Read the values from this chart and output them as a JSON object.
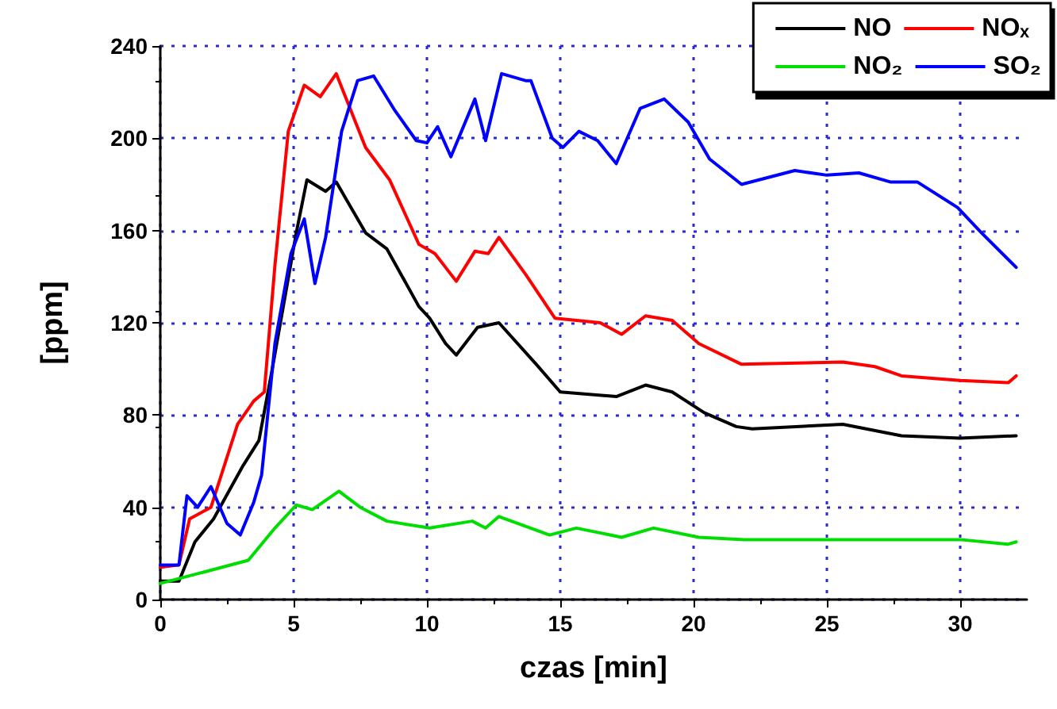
{
  "chart_data": {
    "type": "line",
    "xlabel": "czas [min]",
    "ylabel": "[ppm]",
    "xlim": [
      0,
      32.5
    ],
    "xticks": [
      0,
      5,
      10,
      15,
      20,
      25,
      30
    ],
    "ylim": [
      0,
      240
    ],
    "yticks": [
      0,
      40,
      80,
      120,
      160,
      200,
      240
    ],
    "grid": true,
    "legend": "top right",
    "series": [
      {
        "name": "NO",
        "color": "#000000",
        "x": [
          0,
          0.7,
          1.3,
          2,
          3.1,
          3.7,
          4.2,
          5.1,
          5.5,
          6.2,
          6.6,
          7.7,
          8.5,
          9.7,
          10.1,
          10.7,
          11.1,
          11.9,
          12.7,
          14.1,
          15,
          17.1,
          18.2,
          19.2,
          20.4,
          21.6,
          22.2,
          25.6,
          27.8,
          30,
          32.1
        ],
        "values": [
          8,
          8,
          25,
          35,
          58,
          69,
          100,
          159,
          182,
          177,
          181,
          159,
          152,
          127,
          122,
          111,
          106,
          118,
          120,
          102,
          90,
          88,
          93,
          90,
          81,
          75,
          74,
          76,
          71,
          70,
          71
        ]
      },
      {
        "name": "NOₓ",
        "color": "#ff0000",
        "x": [
          0,
          0.7,
          1.1,
          1.9,
          2.9,
          3.5,
          3.9,
          4.3,
          4.8,
          5.4,
          6,
          6.6,
          7.7,
          8.6,
          9.7,
          10.3,
          11.1,
          11.8,
          12.3,
          12.7,
          13.7,
          14.8,
          16.5,
          17.3,
          18.2,
          19.2,
          20.2,
          21.8,
          25.6,
          26.8,
          27.8,
          30,
          31.8,
          32.1
        ],
        "values": [
          14,
          15,
          35,
          40,
          76,
          86,
          90,
          145,
          203,
          223,
          218,
          228,
          196,
          182,
          154,
          150,
          138,
          151,
          150,
          157,
          141,
          122,
          120,
          115,
          123,
          121,
          111,
          102,
          103,
          101,
          97,
          95,
          94,
          97
        ]
      },
      {
        "name": "NO₂",
        "color": "#00dd00",
        "x": [
          0,
          1,
          3.3,
          4.3,
          5.1,
          5.7,
          6.7,
          7.5,
          8.5,
          10.1,
          11.7,
          12.2,
          12.7,
          14.6,
          15.6,
          17.3,
          18.5,
          20.2,
          21.9,
          30,
          31.8,
          32.1
        ],
        "values": [
          7,
          10,
          17,
          31,
          41,
          39,
          47,
          40,
          34,
          31,
          34,
          31,
          36,
          28,
          31,
          27,
          31,
          27,
          26,
          26,
          24,
          25
        ]
      },
      {
        "name": "SO₂",
        "color": "#0000ff",
        "x": [
          0,
          0.7,
          1,
          1.4,
          1.9,
          2.5,
          3,
          3.5,
          3.8,
          4.3,
          4.9,
          5.4,
          5.8,
          6.2,
          6.8,
          7.4,
          8,
          8.8,
          9.6,
          10,
          10.4,
          10.9,
          11.8,
          12.2,
          12.8,
          13.7,
          13.9,
          14.7,
          15.1,
          15.7,
          16.4,
          17.1,
          18,
          18.9,
          19.8,
          20.6,
          21.8,
          23.8,
          25,
          26.2,
          27.4,
          28.4,
          29.9,
          30.8,
          32.1
        ],
        "values": [
          15,
          15,
          45,
          40,
          49,
          33,
          28,
          42,
          54,
          111,
          150,
          165,
          137,
          157,
          203,
          225,
          227,
          212,
          199,
          198,
          205,
          192,
          217,
          199,
          228,
          225,
          225,
          200,
          196,
          203,
          199,
          189,
          213,
          217,
          207,
          191,
          180,
          186,
          184,
          185,
          181,
          181,
          170,
          159,
          144
        ]
      }
    ]
  }
}
